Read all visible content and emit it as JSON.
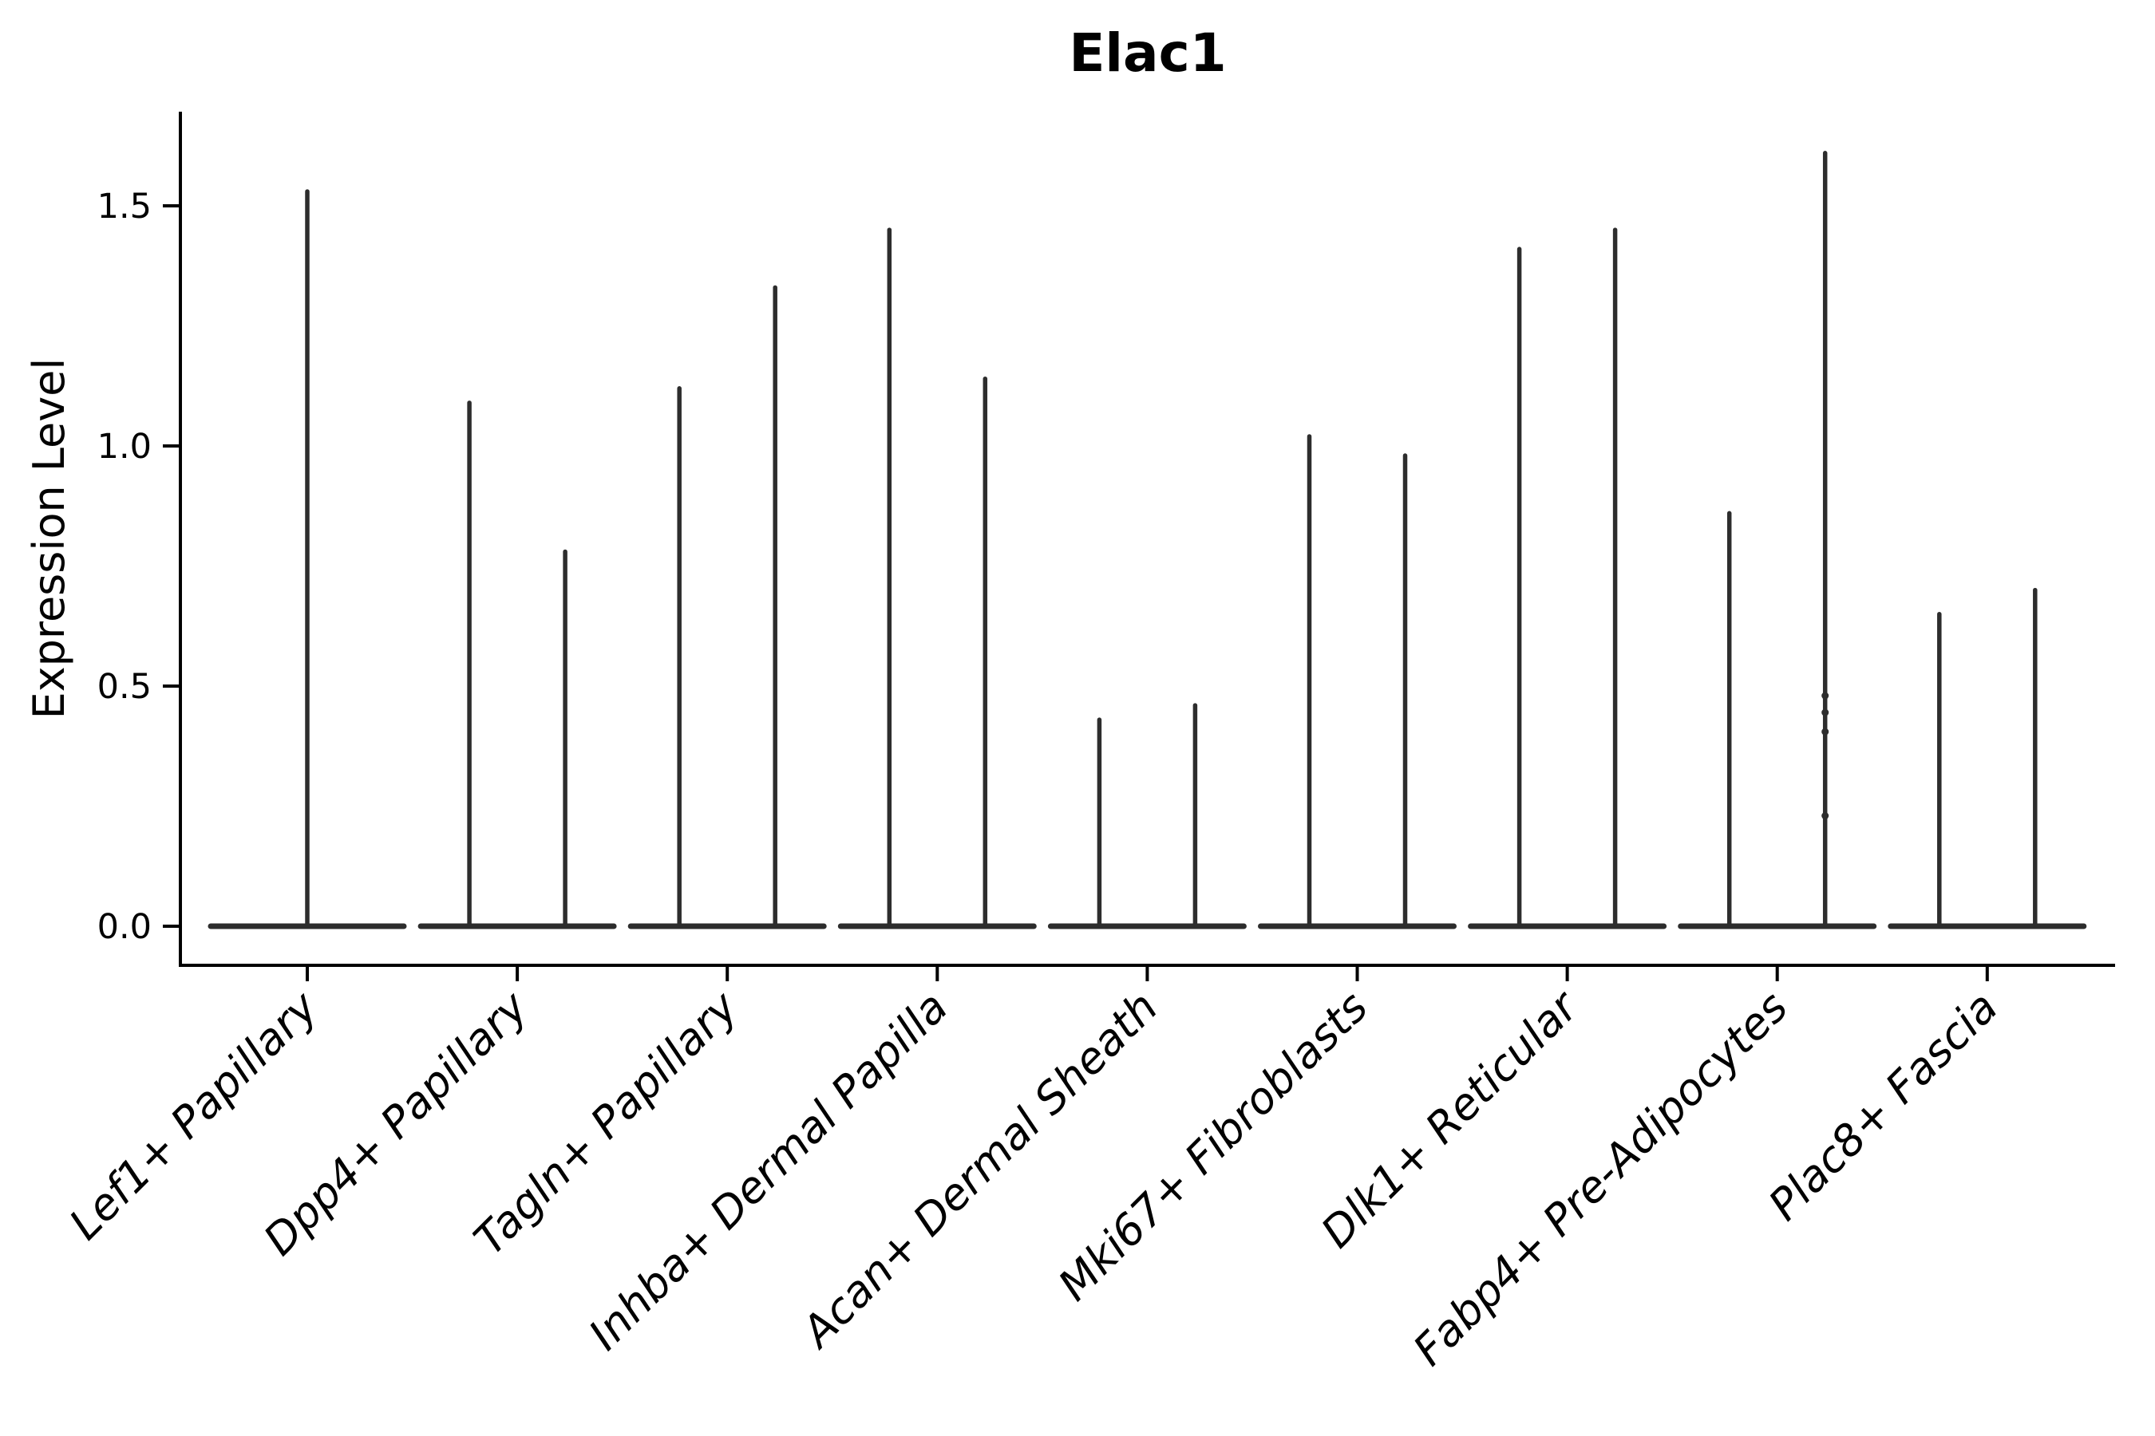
{
  "figure": {
    "background": "#ffffff"
  },
  "chart_data": {
    "type": "violin",
    "title": "Elac1",
    "ylabel": "Expression Level",
    "xlabel": "",
    "grid": false,
    "legend_position": "none",
    "ylim": [
      -0.08,
      1.7
    ],
    "ytick_labels": [
      "0.0",
      "0.5",
      "1.0",
      "1.5"
    ],
    "ytick_values": [
      0.0,
      0.5,
      1.0,
      1.5
    ],
    "colors": {
      "violin": "#2d2d2d",
      "axis": "#000000",
      "text": "#000000",
      "background": "#ffffff"
    },
    "categories": [
      "Lef1+ Papillary",
      "Dpp4+ Papillary",
      "Tagln+ Papillary",
      "Inhba+ Dermal Papilla",
      "Acan+ Dermal Sheath",
      "Mki67+ Fibroblasts",
      "Dlk1+ Reticular",
      "Fabp4+ Pre-Adipocytes",
      "Plac8+ Fascia"
    ],
    "violins": [
      {
        "category": "Lef1+ Papillary",
        "spike_maxima": [
          1.53
        ]
      },
      {
        "category": "Dpp4+ Papillary",
        "spike_maxima": [
          1.09,
          0.78
        ]
      },
      {
        "category": "Tagln+ Papillary",
        "spike_maxima": [
          1.12,
          1.33
        ]
      },
      {
        "category": "Inhba+ Dermal Papilla",
        "spike_maxima": [
          1.45,
          1.14
        ]
      },
      {
        "category": "Acan+ Dermal Sheath",
        "spike_maxima": [
          0.43,
          0.46
        ]
      },
      {
        "category": "Mki67+ Fibroblasts",
        "spike_maxima": [
          1.02,
          0.98
        ]
      },
      {
        "category": "Dlk1+ Reticular",
        "spike_maxima": [
          1.41,
          1.45
        ]
      },
      {
        "category": "Fabp4+ Pre-Adipocytes",
        "spike_maxima": [
          0.86,
          1.61
        ],
        "nonzero_points": [
          0.48,
          0.445,
          0.405,
          0.23
        ]
      },
      {
        "category": "Plac8+ Fascia",
        "spike_maxima": [
          0.65,
          0.7
        ]
      }
    ],
    "baseline_value": 0.0
  }
}
